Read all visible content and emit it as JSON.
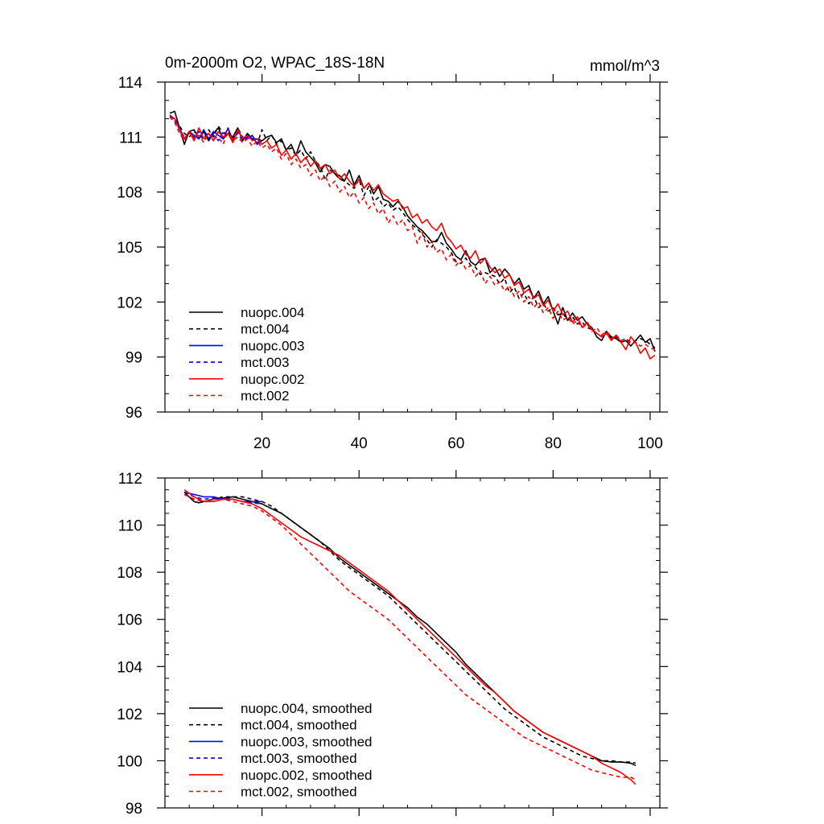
{
  "figure": {
    "title_left": "0m-2000m O2, WPAC_18S-18N",
    "title_right": "mmol/m^3"
  },
  "chart_data": [
    {
      "type": "line",
      "name": "raw",
      "title": "0m-2000m O2, WPAC_18S-18N",
      "units": "mmol/m^3",
      "xlabel": "",
      "ylabel": "",
      "xlim": [
        0,
        102
      ],
      "ylim": [
        96,
        114
      ],
      "x_ticks": [
        20,
        40,
        60,
        80,
        100
      ],
      "x_tick_labels": [
        "20",
        "40",
        "60",
        "80",
        "100"
      ],
      "x_minor_step": 5,
      "y_ticks": [
        96,
        99,
        102,
        105,
        108,
        111,
        114
      ],
      "y_tick_labels": [
        "96",
        "99",
        "102",
        "105",
        "108",
        "111",
        "114"
      ],
      "y_minor_step": 1,
      "legend_position": "bottom-left",
      "series": [
        {
          "name": "nuopc.004",
          "color": "#000000",
          "dash": "solid",
          "x_start": 1,
          "values": [
            112.3,
            112.4,
            111.5,
            110.6,
            111.3,
            111.4,
            110.9,
            111.3,
            110.8,
            111.2,
            111.5,
            110.9,
            111.2,
            111.0,
            111.5,
            110.8,
            111.2,
            110.9,
            110.9,
            110.8,
            111.0,
            111.1,
            110.7,
            110.9,
            110.3,
            110.6,
            110.0,
            110.8,
            110.2,
            109.9,
            109.6,
            109.1,
            109.5,
            109.4,
            109.0,
            108.9,
            108.6,
            109.2,
            108.4,
            108.9,
            108.2,
            108.5,
            107.9,
            108.3,
            107.6,
            107.5,
            107.2,
            107.5,
            107.2,
            106.7,
            106.4,
            106.1,
            105.9,
            105.6,
            105.3,
            105.3,
            105.8,
            105.2,
            104.9,
            104.5,
            104.3,
            104.8,
            104.2,
            104.0,
            104.3,
            104.4,
            103.6,
            103.9,
            103.4,
            103.8,
            103.5,
            103.0,
            103.3,
            102.7,
            102.9,
            102.2,
            102.6,
            101.9,
            102.3,
            101.5,
            100.8,
            101.7,
            101.0,
            101.4,
            101.0,
            101.2,
            100.8,
            100.6,
            100.1,
            99.9,
            100.4,
            100.1,
            100.0,
            99.8,
            99.9,
            99.6,
            99.9,
            100.2,
            99.8,
            100.0,
            99.3
          ]
        },
        {
          "name": "mct.004",
          "color": "#000000",
          "dash": "dashed",
          "x_start": 1,
          "values": [
            112.1,
            112.0,
            111.6,
            111.2,
            111.0,
            111.3,
            111.1,
            110.9,
            111.4,
            111.0,
            111.6,
            111.2,
            111.3,
            110.9,
            111.5,
            111.0,
            110.9,
            111.1,
            110.6,
            111.4,
            110.8,
            111.1,
            110.6,
            110.8,
            110.3,
            110.4,
            110.0,
            110.3,
            109.8,
            110.2,
            109.7,
            109.4,
            108.7,
            109.2,
            109.0,
            108.7,
            108.6,
            108.4,
            108.2,
            108.7,
            107.8,
            108.3,
            107.5,
            107.7,
            107.2,
            107.4,
            107.0,
            107.2,
            106.9,
            106.5,
            106.2,
            106.0,
            105.7,
            105.4,
            105.0,
            105.4,
            105.2,
            105.0,
            104.7,
            104.2,
            104.1,
            104.4,
            104.0,
            103.9,
            103.5,
            103.6,
            103.5,
            103.4,
            103.0,
            103.3,
            102.5,
            102.8,
            102.2,
            102.5,
            101.9,
            102.3,
            101.7,
            101.9,
            101.5,
            101.7,
            101.3,
            101.4,
            101.0,
            101.2,
            100.8,
            100.9,
            100.6,
            100.5,
            100.3,
            100.1,
            100.4,
            100.0,
            100.1,
            99.9,
            100.0,
            99.8,
            99.9,
            100.0,
            99.9,
            99.7,
            99.5
          ]
        },
        {
          "name": "nuopc.003",
          "color": "#0000ff",
          "dash": "solid",
          "x_start": 1,
          "values": [
            112.1,
            112.0,
            111.5,
            110.9,
            111.3,
            111.1,
            110.9,
            111.4,
            110.9,
            111.3,
            111.1,
            110.9,
            111.5,
            110.8,
            111.3,
            111.0,
            110.9,
            111.1,
            110.6,
            110.8
          ]
        },
        {
          "name": "mct.003",
          "color": "#0000ff",
          "dash": "dashed",
          "x_start": 1,
          "values": [
            112.2,
            111.9,
            111.4,
            111.0,
            111.2,
            111.0,
            111.3,
            110.9,
            111.2,
            111.1,
            110.8,
            111.3,
            111.0,
            110.9,
            111.2,
            110.8,
            111.0,
            110.9,
            110.7,
            110.9
          ]
        },
        {
          "name": "nuopc.002",
          "color": "#ff0000",
          "dash": "solid",
          "x_start": 1,
          "values": [
            112.2,
            112.0,
            111.4,
            110.9,
            111.3,
            110.8,
            111.5,
            110.9,
            111.2,
            110.8,
            111.3,
            111.0,
            111.2,
            110.7,
            111.4,
            110.9,
            111.1,
            110.8,
            110.9,
            110.6,
            110.8,
            110.4,
            110.6,
            110.0,
            110.3,
            109.8,
            110.1,
            109.6,
            109.9,
            109.4,
            109.7,
            109.3,
            109.5,
            109.0,
            109.2,
            108.7,
            109.0,
            108.6,
            108.3,
            108.7,
            108.2,
            108.5,
            108.1,
            108.4,
            107.9,
            107.7,
            107.5,
            107.6,
            107.1,
            107.2,
            106.6,
            106.8,
            106.3,
            106.5,
            106.1,
            105.9,
            106.3,
            105.6,
            105.3,
            104.9,
            105.1,
            104.6,
            104.4,
            104.8,
            104.1,
            104.4,
            103.9,
            103.6,
            103.8,
            103.3,
            103.5,
            102.9,
            103.1,
            102.5,
            102.7,
            102.2,
            102.4,
            101.8,
            102.1,
            101.5,
            101.9,
            101.3,
            101.5,
            100.9,
            101.2,
            100.6,
            100.9,
            100.5,
            100.3,
            100.1,
            100.3,
            99.9,
            100.2,
            99.8,
            99.4,
            100.1,
            99.8,
            99.2,
            99.5,
            98.9,
            99.1
          ]
        },
        {
          "name": "mct.002",
          "color": "#ff0000",
          "dash": "dashed",
          "x_start": 1,
          "values": [
            112.1,
            111.8,
            111.2,
            110.8,
            111.3,
            110.9,
            111.1,
            110.7,
            111.2,
            110.9,
            111.0,
            110.6,
            111.4,
            110.8,
            111.0,
            110.7,
            110.9,
            110.5,
            110.8,
            110.4,
            110.6,
            110.2,
            110.4,
            109.8,
            110.1,
            109.5,
            109.8,
            109.3,
            109.5,
            108.9,
            109.2,
            108.6,
            108.9,
            108.3,
            108.6,
            108.0,
            108.3,
            107.7,
            108.0,
            107.4,
            107.7,
            107.1,
            107.4,
            106.8,
            107.1,
            106.3,
            106.7,
            106.2,
            106.5,
            105.9,
            106.1,
            105.2,
            105.8,
            105.0,
            105.3,
            104.7,
            104.9,
            104.3,
            104.6,
            104.0,
            104.3,
            103.8,
            104.0,
            103.4,
            103.7,
            103.0,
            103.4,
            102.9,
            103.1,
            102.6,
            102.9,
            102.3,
            102.6,
            102.0,
            102.3,
            101.7,
            102.0,
            101.4,
            101.7,
            101.1,
            101.5,
            101.0,
            101.2,
            100.8,
            101.0,
            100.6,
            100.8,
            100.4,
            100.6,
            100.2,
            100.4,
            100.0,
            100.2,
            99.9,
            100.0,
            99.7,
            99.8,
            99.6,
            99.7,
            99.5,
            99.4
          ]
        }
      ]
    },
    {
      "type": "line",
      "name": "smoothed",
      "title": "",
      "xlabel": "",
      "ylabel": "",
      "xlim": [
        0,
        102
      ],
      "ylim": [
        98,
        112
      ],
      "x_ticks": [
        20,
        40,
        60,
        80,
        100
      ],
      "x_tick_labels": [
        "",
        "",
        "",
        "",
        ""
      ],
      "x_minor_step": 5,
      "y_ticks": [
        98,
        100,
        102,
        104,
        106,
        108,
        110,
        112
      ],
      "y_tick_labels": [
        "98",
        "100",
        "102",
        "104",
        "106",
        "108",
        "110",
        "112"
      ],
      "y_minor_step": 0.5,
      "legend_position": "bottom-left",
      "series": [
        {
          "name": "nuopc.004, smoothed",
          "color": "#000000",
          "dash": "solid",
          "x": [
            4,
            5,
            6,
            7,
            8,
            10,
            12,
            14,
            16,
            18,
            20,
            22,
            24,
            26,
            28,
            30,
            32,
            34,
            36,
            38,
            40,
            42,
            44,
            46,
            48,
            50,
            52,
            54,
            56,
            58,
            60,
            62,
            64,
            66,
            68,
            70,
            72,
            74,
            76,
            78,
            80,
            82,
            84,
            86,
            88,
            90,
            92,
            94,
            96,
            97
          ],
          "values": [
            111.4,
            111.2,
            111.0,
            110.95,
            111.0,
            111.1,
            111.15,
            111.2,
            111.1,
            111.0,
            110.9,
            110.7,
            110.5,
            110.2,
            109.9,
            109.6,
            109.3,
            109.0,
            108.6,
            108.3,
            108.0,
            107.7,
            107.4,
            107.1,
            106.8,
            106.5,
            106.1,
            105.8,
            105.4,
            105.0,
            104.6,
            104.1,
            103.7,
            103.3,
            102.9,
            102.5,
            102.1,
            101.8,
            101.5,
            101.2,
            101.0,
            100.8,
            100.6,
            100.4,
            100.2,
            100.0,
            99.95,
            99.95,
            99.9,
            99.8
          ]
        },
        {
          "name": "mct.004, smoothed",
          "color": "#000000",
          "dash": "dashed",
          "x": [
            4,
            6,
            8,
            10,
            12,
            14,
            16,
            18,
            20,
            22,
            24,
            26,
            28,
            30,
            32,
            34,
            36,
            38,
            40,
            42,
            44,
            46,
            48,
            50,
            52,
            54,
            56,
            58,
            60,
            62,
            64,
            66,
            68,
            70,
            72,
            74,
            76,
            78,
            80,
            82,
            84,
            86,
            88,
            90,
            92,
            94,
            96,
            97
          ],
          "values": [
            111.3,
            111.1,
            111.0,
            111.1,
            111.2,
            111.2,
            111.2,
            111.1,
            111.0,
            110.8,
            110.5,
            110.2,
            109.9,
            109.6,
            109.3,
            108.9,
            108.5,
            108.2,
            107.9,
            107.6,
            107.3,
            107.0,
            106.6,
            106.2,
            105.8,
            105.4,
            105.0,
            104.6,
            104.2,
            103.8,
            103.4,
            103.0,
            102.6,
            102.2,
            101.9,
            101.6,
            101.3,
            101.0,
            100.8,
            100.6,
            100.4,
            100.2,
            100.1,
            100.0,
            100.0,
            99.95,
            99.95,
            99.9
          ]
        },
        {
          "name": "nuopc.003, smoothed",
          "color": "#0000ff",
          "dash": "solid",
          "x": [
            4,
            6,
            8,
            10,
            12,
            14,
            16,
            18,
            20
          ],
          "values": [
            111.4,
            111.3,
            111.2,
            111.2,
            111.1,
            111.1,
            111.0,
            111.0,
            111.0
          ]
        },
        {
          "name": "mct.003, smoothed",
          "color": "#0000ff",
          "dash": "dashed",
          "x": [
            4,
            6,
            8,
            10,
            12,
            14,
            16,
            18,
            20
          ],
          "values": [
            111.4,
            111.2,
            111.1,
            111.15,
            111.15,
            111.1,
            111.0,
            110.95,
            110.9
          ]
        },
        {
          "name": "nuopc.002, smoothed",
          "color": "#ff0000",
          "dash": "solid",
          "x": [
            4,
            6,
            8,
            10,
            12,
            14,
            16,
            18,
            20,
            22,
            24,
            26,
            28,
            30,
            32,
            34,
            36,
            38,
            40,
            42,
            44,
            46,
            48,
            50,
            52,
            54,
            56,
            58,
            60,
            62,
            64,
            66,
            68,
            70,
            72,
            74,
            76,
            78,
            80,
            82,
            84,
            86,
            88,
            90,
            92,
            94,
            96,
            97
          ],
          "values": [
            111.5,
            111.2,
            111.0,
            111.0,
            111.1,
            111.1,
            111.0,
            110.9,
            110.7,
            110.4,
            110.1,
            109.8,
            109.5,
            109.3,
            109.1,
            108.9,
            108.7,
            108.4,
            108.1,
            107.8,
            107.5,
            107.2,
            106.8,
            106.4,
            106.0,
            105.6,
            105.2,
            104.8,
            104.4,
            104.0,
            103.6,
            103.2,
            102.9,
            102.5,
            102.1,
            101.8,
            101.5,
            101.2,
            101.0,
            100.8,
            100.6,
            100.4,
            100.2,
            99.9,
            99.7,
            99.5,
            99.2,
            99.0
          ]
        },
        {
          "name": "mct.002, smoothed",
          "color": "#ff0000",
          "dash": "dashed",
          "x": [
            4,
            6,
            8,
            10,
            12,
            14,
            16,
            18,
            20,
            22,
            24,
            26,
            28,
            30,
            32,
            34,
            36,
            38,
            40,
            42,
            44,
            46,
            48,
            50,
            52,
            54,
            56,
            58,
            60,
            62,
            64,
            66,
            68,
            70,
            72,
            74,
            76,
            78,
            80,
            82,
            84,
            86,
            88,
            90,
            92,
            94,
            96,
            97
          ],
          "values": [
            111.3,
            111.1,
            111.0,
            111.1,
            111.1,
            111.0,
            110.9,
            110.8,
            110.6,
            110.3,
            110.0,
            109.6,
            109.2,
            108.8,
            108.4,
            108.0,
            107.6,
            107.2,
            106.9,
            106.6,
            106.3,
            106.0,
            105.6,
            105.2,
            104.8,
            104.4,
            104.0,
            103.6,
            103.2,
            102.8,
            102.5,
            102.2,
            101.9,
            101.6,
            101.3,
            101.0,
            100.8,
            100.6,
            100.4,
            100.2,
            100.0,
            99.8,
            99.6,
            99.5,
            99.4,
            99.3,
            99.3,
            99.2
          ]
        }
      ]
    }
  ]
}
